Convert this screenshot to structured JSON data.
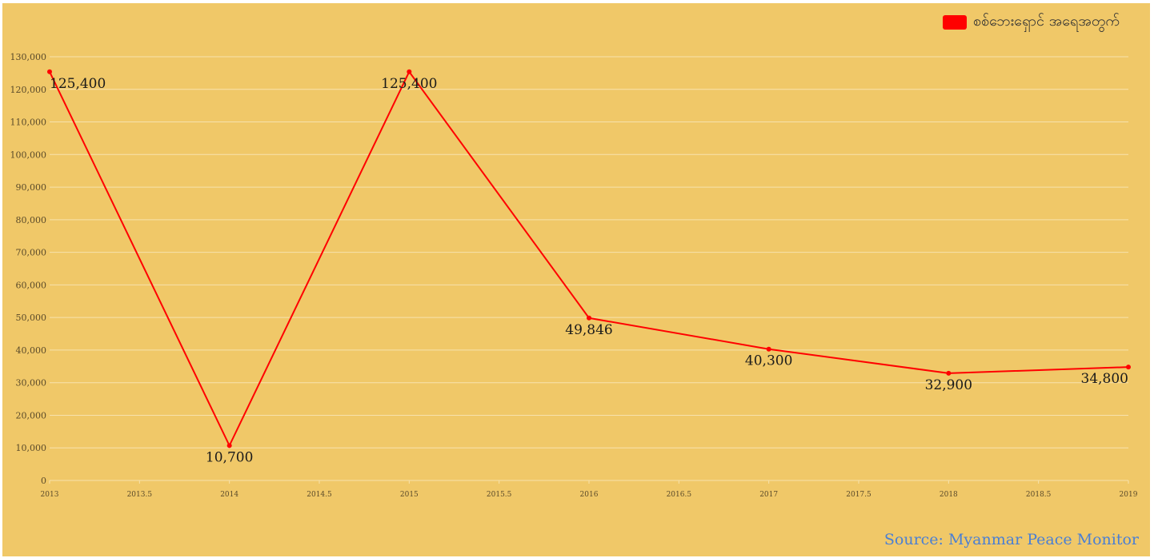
{
  "chart_data": {
    "type": "line",
    "title": "",
    "xlabel": "",
    "ylabel": "",
    "xlim": [
      2013,
      2019
    ],
    "ylim": [
      0,
      130000
    ],
    "y_ticks": [
      "0",
      "10,000",
      "20,000",
      "30,000",
      "40,000",
      "50,000",
      "60,000",
      "70,000",
      "80,000",
      "90,000",
      "100,000",
      "110,000",
      "120,000",
      "130,000"
    ],
    "x_ticks": [
      "2013",
      "2013.5",
      "2014",
      "2014.5",
      "2015",
      "2015.5",
      "2016",
      "2016.5",
      "2017",
      "2017.5",
      "2018",
      "2018.5",
      "2019"
    ],
    "grid": true,
    "legend_position": "top-right",
    "series": [
      {
        "name": "စစ်ဘေးရှောင် အရေအတွက်",
        "color": "#ff0000",
        "x": [
          2013,
          2014,
          2015,
          2016,
          2017,
          2018,
          2019
        ],
        "values": [
          125400,
          10700,
          125400,
          49846,
          40300,
          32900,
          34800
        ],
        "labels": [
          "125,400",
          "10,700",
          "125,400",
          "49,846",
          "40,300",
          "32,900",
          "34,800"
        ]
      }
    ]
  },
  "source": {
    "text": "Source: Myanmar Peace Monitor",
    "color": "#4a7fd4"
  },
  "colors": {
    "background": "#f0c868",
    "grid": "#f7e2ad"
  }
}
